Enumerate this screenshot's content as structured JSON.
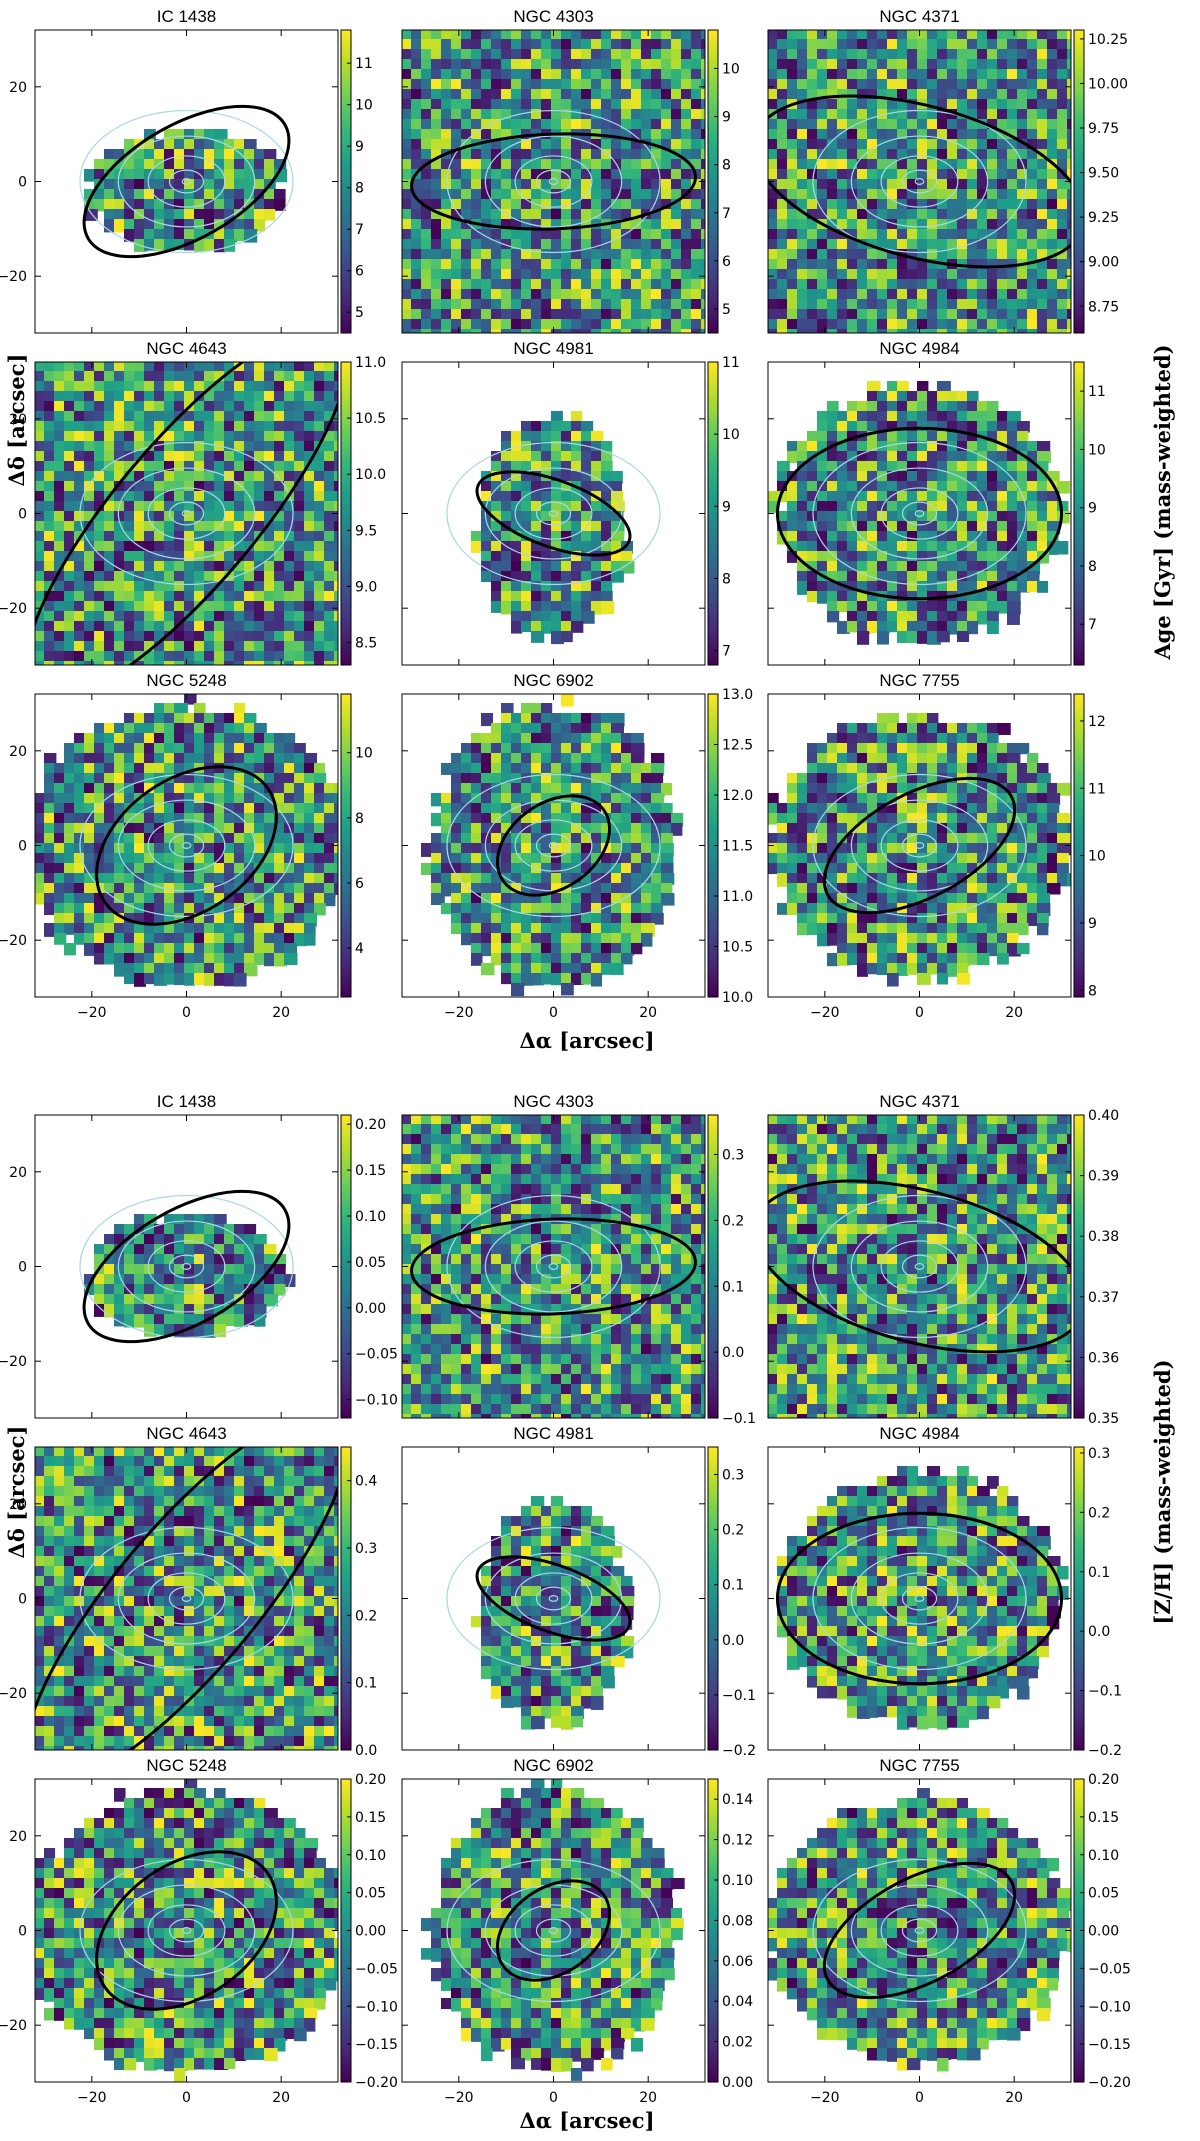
{
  "figure": {
    "row_labels": {
      "ylabel": "Δδ [arcsec]",
      "xlabel": "Δα [arcsec]"
    },
    "axis_ticks": {
      "x": [
        "−20",
        "0",
        "20"
      ],
      "y": [
        "−20",
        "0",
        "20"
      ]
    },
    "axis_range": {
      "x": [
        -32,
        32
      ],
      "y": [
        -32,
        32
      ]
    },
    "colormap": "viridis",
    "colormap_stops": [
      "#440154",
      "#482878",
      "#3e4989",
      "#31688e",
      "#26828e",
      "#1f9e89",
      "#35b779",
      "#6ece58",
      "#b5de2b",
      "#fde725"
    ],
    "contour_color": "#a8d8e8",
    "ellipse_color": "#000000"
  },
  "chart_data": [
    {
      "type": "heatmap",
      "block": "Age",
      "colorbar_label": "Age [Gyr] (mass-weighted)",
      "galaxies": [
        "IC 1438",
        "NGC 4303",
        "NGC 4371",
        "NGC 4643",
        "NGC 4981",
        "NGC 4984",
        "NGC 5248",
        "NGC 6902",
        "NGC 7755"
      ],
      "colorbar_ticks": [
        [
          "5",
          "6",
          "7",
          "8",
          "9",
          "10",
          "11"
        ],
        [
          "5",
          "6",
          "7",
          "8",
          "9",
          "10"
        ],
        [
          "8.75",
          "9.00",
          "9.25",
          "9.50",
          "9.75",
          "10.00",
          "10.25"
        ],
        [
          "8.5",
          "9.0",
          "9.5",
          "10.0",
          "10.5",
          "11.0"
        ],
        [
          "7",
          "8",
          "9",
          "10",
          "11"
        ],
        [
          "7",
          "8",
          "9",
          "10",
          "11"
        ],
        [
          "4",
          "6",
          "8",
          "10"
        ],
        [
          "10.0",
          "10.5",
          "11.0",
          "11.5",
          "12.0",
          "12.5",
          "13.0"
        ],
        [
          "8",
          "9",
          "10",
          "11",
          "12"
        ]
      ],
      "colorbar_ranges": [
        [
          4.5,
          11.8
        ],
        [
          4.5,
          10.8
        ],
        [
          8.6,
          10.3
        ],
        [
          8.3,
          11.0
        ],
        [
          6.8,
          11.0
        ],
        [
          6.3,
          11.5
        ],
        [
          2.5,
          11.8
        ],
        [
          10.0,
          13.0
        ],
        [
          7.9,
          12.4
        ]
      ]
    },
    {
      "type": "heatmap",
      "block": "Z/H",
      "colorbar_label": "[Z/H] (mass-weighted)",
      "galaxies": [
        "IC 1438",
        "NGC 4303",
        "NGC 4371",
        "NGC 4643",
        "NGC 4981",
        "NGC 4984",
        "NGC 5248",
        "NGC 6902",
        "NGC 7755"
      ],
      "colorbar_ticks": [
        [
          "−0.10",
          "−0.05",
          "0.00",
          "0.05",
          "0.10",
          "0.15",
          "0.20"
        ],
        [
          "−0.1",
          "0.0",
          "0.1",
          "0.2",
          "0.3"
        ],
        [
          "0.35",
          "0.36",
          "0.37",
          "0.38",
          "0.39",
          "0.40"
        ],
        [
          "0.0",
          "0.1",
          "0.2",
          "0.3",
          "0.4"
        ],
        [
          "−0.2",
          "−0.1",
          "0.0",
          "0.1",
          "0.2",
          "0.3"
        ],
        [
          "−0.2",
          "−0.1",
          "0.0",
          "0.1",
          "0.2",
          "0.3"
        ],
        [
          "−0.20",
          "−0.15",
          "−0.10",
          "−0.05",
          "0.00",
          "0.05",
          "0.10",
          "0.15",
          "0.20"
        ],
        [
          "0.00",
          "0.02",
          "0.04",
          "0.06",
          "0.08",
          "0.10",
          "0.12",
          "0.14"
        ],
        [
          "−0.20",
          "−0.15",
          "−0.10",
          "−0.05",
          "0.00",
          "0.05",
          "0.10",
          "0.15",
          "0.20"
        ]
      ],
      "colorbar_ranges": [
        [
          -0.12,
          0.21
        ],
        [
          -0.1,
          0.36
        ],
        [
          0.35,
          0.4
        ],
        [
          0.0,
          0.45
        ],
        [
          -0.2,
          0.35
        ],
        [
          -0.2,
          0.31
        ],
        [
          -0.2,
          0.2
        ],
        [
          0.0,
          0.15
        ],
        [
          -0.2,
          0.2
        ]
      ]
    }
  ]
}
